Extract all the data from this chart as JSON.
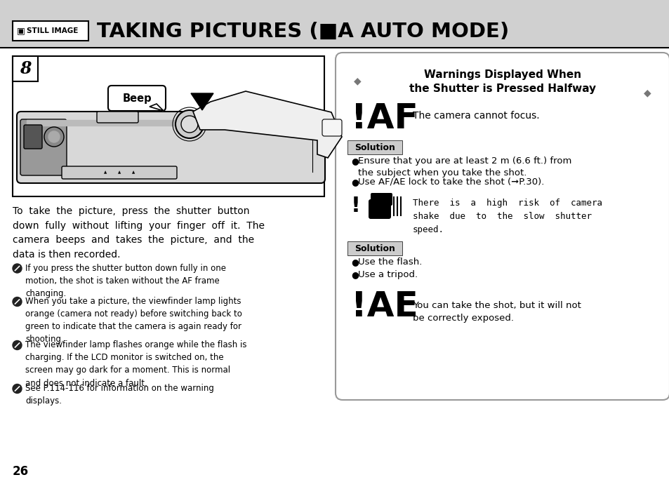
{
  "bg_color": "#d0d0d0",
  "white": "#ffffff",
  "black": "#000000",
  "light_gray": "#e8e8e8",
  "med_gray": "#bbbbbb",
  "dark_gray": "#888888",
  "page_number": "26",
  "header": {
    "icon_label": "STILL IMAGE",
    "title": "TAKING PICTURES (■A AUTO MODE)"
  },
  "left": {
    "step": "8",
    "beep": "Beep",
    "para": "To  take  the  picture,  press  the  shutter  button\ndown  fully  without  lifting  your  finger  off  it.  The\ncamera  beeps  and  takes  the  picture,  and  the\ndata is then recorded.",
    "notes": [
      "If you press the shutter button down fully in one\nmotion, the shot is taken without the AF frame\nchanging.",
      "When you take a picture, the viewfinder lamp lights\norange (camera not ready) before switching back to\ngreen to indicate that the camera is again ready for\nshooting.",
      "The viewfinder lamp flashes orange while the flash is\ncharging. If the LCD monitor is switched on, the\nscreen may go dark for a moment. This is normal\nand does not indicate a fault.",
      "See P.114-116 for information on the warning\ndisplays."
    ]
  },
  "right": {
    "title1": "Warnings Displayed When",
    "title2": "the Shutter is Pressed Halfway",
    "w1_sym": "!AF",
    "w1_txt": "The camera cannot focus.",
    "sol1": "Solution",
    "sol1_b1": "Ensure that you are at least 2 m (6.6 ft.) from\nthe subject when you take the shot.",
    "sol1_b2": "Use AF/AE lock to take the shot (➞P.30).",
    "w2_txt": "There  is  a  high  risk  of  camera\nshake  due  to  the  slow  shutter\nspeed.",
    "sol2": "Solution",
    "sol2_b1": "Use the flash.",
    "sol2_b2": "Use a tripod.",
    "w3_sym": "!AE",
    "w3_txt": "You can take the shot, but it will not\nbe correctly exposed."
  }
}
